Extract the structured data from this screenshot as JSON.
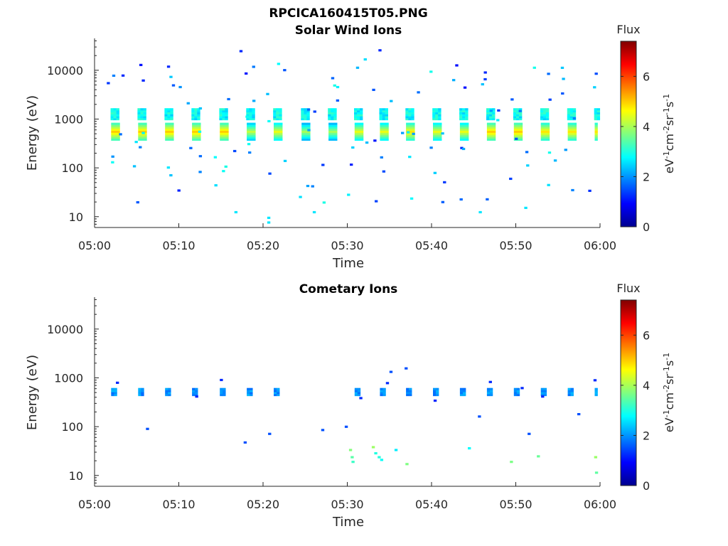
{
  "figure": {
    "filename_title": "RPCICA160415T05.PNG"
  },
  "panels": [
    {
      "title": "Solar Wind Ions",
      "ylabel": "Energy (eV)",
      "xlabel": "Time",
      "colorbar_title": "Flux",
      "colorbar_unit": [
        "eV",
        "-1",
        "cm",
        "-2",
        "sr",
        "-1",
        "s",
        "-1"
      ]
    },
    {
      "title": "Cometary Ions",
      "ylabel": "Energy (eV)",
      "xlabel": "Time",
      "colorbar_title": "Flux",
      "colorbar_unit": [
        "eV",
        "-1",
        "cm",
        "-2",
        "sr",
        "-1",
        "s",
        "-1"
      ]
    }
  ],
  "chart_data": [
    {
      "type": "heatmap",
      "title": "Solar Wind Ions",
      "xlabel": "Time",
      "ylabel": "Energy (eV)",
      "y_scale": "log",
      "xlim": [
        "05:00",
        "06:00"
      ],
      "ylim": [
        6,
        45000
      ],
      "x_ticks": [
        "05:00",
        "05:10",
        "05:20",
        "05:30",
        "05:40",
        "05:50",
        "06:00"
      ],
      "y_ticks": [
        10,
        100,
        1000,
        10000
      ],
      "y_tick_labels": [
        "10",
        "100",
        "1000",
        "10000"
      ],
      "colorbar": {
        "label": "Flux",
        "range": [
          0,
          7.4
        ],
        "ticks": [
          0,
          2,
          4,
          6
        ],
        "colormap": "jet"
      },
      "pulse_minutes": [
        2.3,
        5.5,
        8.7,
        11.9,
        15.2,
        18.4,
        21.6,
        24.9,
        28.1,
        31.2,
        34.2,
        37.3,
        40.5,
        43.7,
        46.9,
        50.1,
        53.3,
        56.5,
        59.7
      ],
      "pulses": [
        {
          "time": "05:02",
          "energy_eV": 600,
          "flux": 5.0
        },
        {
          "time": "05:05",
          "energy_eV": 600,
          "flux": 5.0
        },
        {
          "time": "05:08",
          "energy_eV": 600,
          "flux": 5.0
        },
        {
          "time": "05:11",
          "energy_eV": 600,
          "flux": 5.0
        },
        {
          "time": "05:15",
          "energy_eV": 600,
          "flux": 5.0
        },
        {
          "time": "05:18",
          "energy_eV": 600,
          "flux": 4.2
        },
        {
          "time": "05:21",
          "energy_eV": 600,
          "flux": 4.5
        },
        {
          "time": "05:24",
          "energy_eV": 600,
          "flux": 4.0
        },
        {
          "time": "05:28",
          "energy_eV": 600,
          "flux": 4.0
        },
        {
          "time": "05:31",
          "energy_eV": 600,
          "flux": 4.5
        },
        {
          "time": "05:34",
          "energy_eV": 600,
          "flux": 4.5
        },
        {
          "time": "05:37",
          "energy_eV": 600,
          "flux": 4.8
        },
        {
          "time": "05:40",
          "energy_eV": 600,
          "flux": 4.5
        },
        {
          "time": "05:43",
          "energy_eV": 600,
          "flux": 4.5
        },
        {
          "time": "05:46",
          "energy_eV": 600,
          "flux": 5.0
        },
        {
          "time": "05:50",
          "energy_eV": 600,
          "flux": 5.0
        },
        {
          "time": "05:53",
          "energy_eV": 600,
          "flux": 4.8
        },
        {
          "time": "05:56",
          "energy_eV": 600,
          "flux": 4.8
        },
        {
          "time": "05:59",
          "energy_eV": 600,
          "flux": 4.8
        }
      ]
    },
    {
      "type": "heatmap",
      "title": "Cometary Ions",
      "xlabel": "Time",
      "ylabel": "Energy (eV)",
      "y_scale": "log",
      "xlim": [
        "05:00",
        "06:00"
      ],
      "ylim": [
        6,
        45000
      ],
      "x_ticks": [
        "05:00",
        "05:10",
        "05:20",
        "05:30",
        "05:40",
        "05:50",
        "06:00"
      ],
      "y_ticks": [
        10,
        100,
        1000,
        10000
      ],
      "y_tick_labels": [
        "10",
        "100",
        "1000",
        "10000"
      ],
      "colorbar": {
        "label": "Flux",
        "range": [
          0,
          7.4
        ],
        "ticks": [
          0,
          2,
          4,
          6
        ],
        "colormap": "jet"
      },
      "pulse_minutes": [
        2.3,
        5.5,
        8.7,
        11.9,
        15.2,
        18.4,
        21.6,
        24.9,
        28.1,
        31.2,
        34.2,
        37.3,
        40.5,
        43.7,
        46.9,
        50.1,
        53.3,
        56.5,
        59.7
      ],
      "pulses": [
        {
          "time": "05:02",
          "energy_eV": 550,
          "flux": 2.0
        },
        {
          "time": "05:05",
          "energy_eV": 550,
          "flux": 2.0
        },
        {
          "time": "05:08",
          "energy_eV": 550,
          "flux": 2.0
        },
        {
          "time": "05:11",
          "energy_eV": 550,
          "flux": 2.0
        },
        {
          "time": "05:15",
          "energy_eV": 550,
          "flux": 2.0
        },
        {
          "time": "05:18",
          "energy_eV": 500,
          "flux": 1.8
        },
        {
          "time": "05:21",
          "energy_eV": 500,
          "flux": 1.8
        },
        {
          "time": "05:31",
          "energy_eV": 550,
          "flux": 1.8
        },
        {
          "time": "05:34",
          "energy_eV": 550,
          "flux": 1.8
        },
        {
          "time": "05:37",
          "energy_eV": 550,
          "flux": 2.0
        },
        {
          "time": "05:40",
          "energy_eV": 550,
          "flux": 2.0
        },
        {
          "time": "05:43",
          "energy_eV": 550,
          "flux": 2.0
        },
        {
          "time": "05:46",
          "energy_eV": 550,
          "flux": 2.0
        },
        {
          "time": "05:50",
          "energy_eV": 550,
          "flux": 2.0
        },
        {
          "time": "05:53",
          "energy_eV": 550,
          "flux": 2.0
        },
        {
          "time": "05:56",
          "energy_eV": 550,
          "flux": 2.0
        },
        {
          "time": "05:59",
          "energy_eV": 550,
          "flux": 2.0
        },
        {
          "time": "05:30",
          "energy_eV": 25,
          "flux": 3.0
        },
        {
          "time": "05:33",
          "energy_eV": 25,
          "flux": 3.8
        }
      ]
    }
  ]
}
